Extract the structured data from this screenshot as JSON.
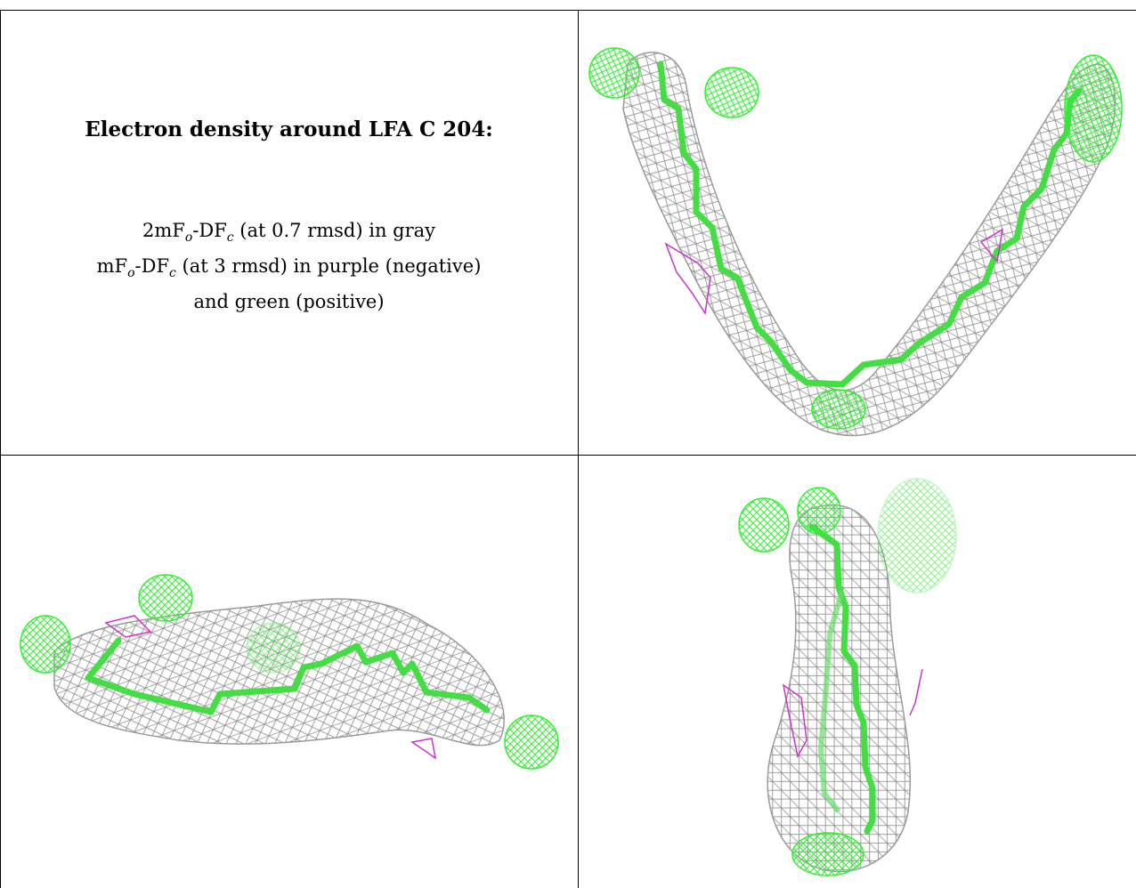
{
  "caption": {
    "title": "Electron density around LFA C 204:",
    "line1_prefix": "2mF",
    "line1_sub1": "o",
    "line1_mid": "-DF",
    "line1_sub2": "c",
    "line1_suffix": " (at 0.7 rmsd) in gray",
    "line2_prefix": "mF",
    "line2_sub1": "o",
    "line2_mid": "-DF",
    "line2_sub2": "c",
    "line2_suffix": " (at 3 rmsd) in purple (negative)",
    "line3": "and green (positive)"
  },
  "colors": {
    "mesh_gray": "#9a9a9a",
    "model_green": "#44dd44",
    "positive_green": "#33ee33",
    "negative_purple": "#cc33cc",
    "border": "#000000"
  },
  "panels": [
    {
      "id": "view-top-right",
      "orientation": "v-shape"
    },
    {
      "id": "view-bottom-left",
      "orientation": "horizontal"
    },
    {
      "id": "view-bottom-right",
      "orientation": "vertical"
    }
  ]
}
